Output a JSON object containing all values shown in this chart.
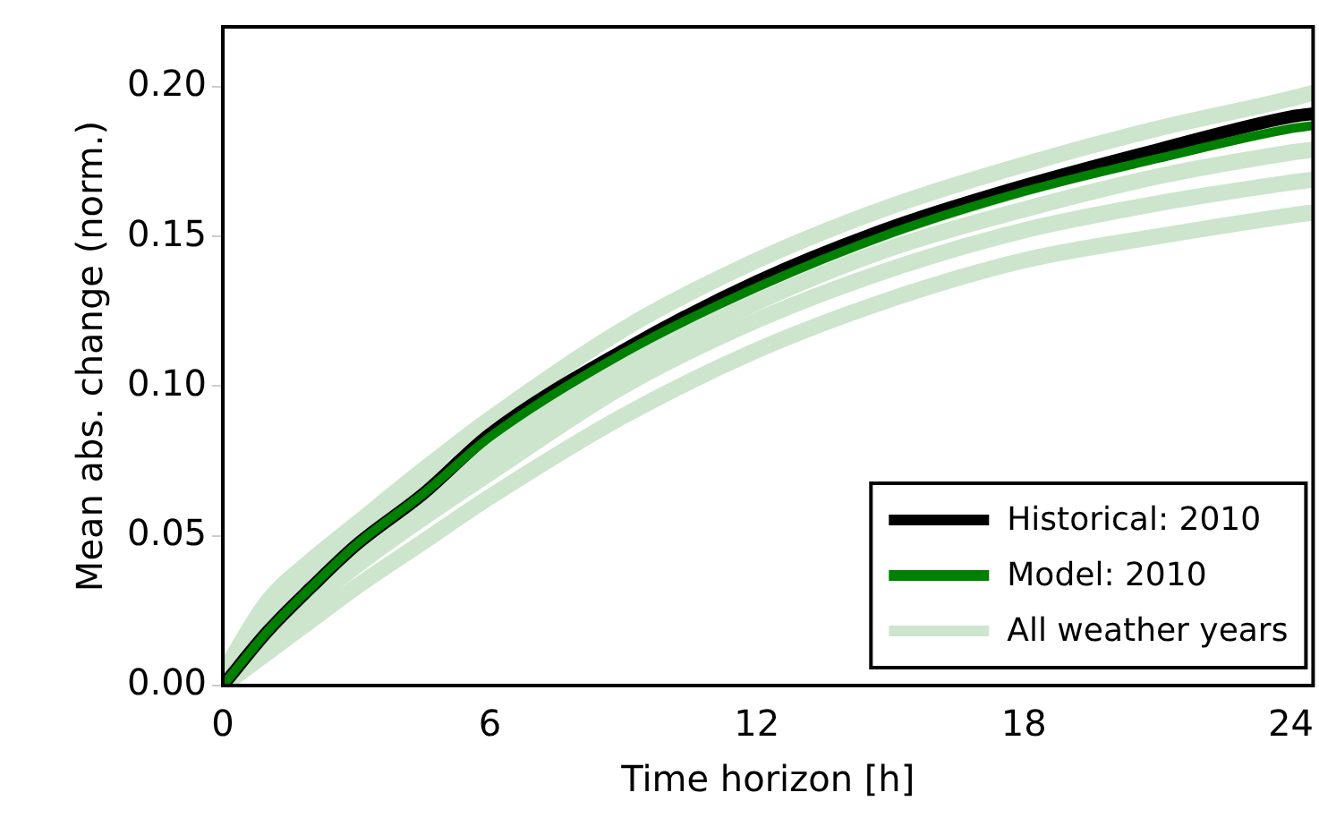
{
  "chart_data": {
    "type": "line",
    "xlabel": "Time horizon [h]",
    "ylabel": "Mean abs. change (norm.)",
    "xlim": [
      0,
      24.5
    ],
    "xticks": [
      0,
      6,
      12,
      18,
      24
    ],
    "ylim": [
      0,
      0.22
    ],
    "yticks": [
      {
        "value": 0,
        "label": "0.00"
      },
      {
        "value": 0.05,
        "label": "0.05"
      },
      {
        "value": 0.1,
        "label": "0.10"
      },
      {
        "value": 0.15,
        "label": "0.15"
      },
      {
        "value": 0.2,
        "label": "0.20"
      }
    ],
    "grid": false,
    "legend": "bottom right",
    "marker": "none",
    "line_style": "solid",
    "x": [
      0,
      1,
      2,
      3,
      4.5,
      6,
      9,
      12,
      15,
      18,
      21,
      24,
      24.5
    ],
    "series": [
      {
        "name": "Historical: 2010",
        "color": "#000000",
        "values": [
          0,
          0.018,
          0.033,
          0.047,
          0.064,
          0.084,
          0.112,
          0.135,
          0.153,
          0.167,
          0.179,
          0.19,
          0.191
        ]
      },
      {
        "name": "Model: 2010",
        "color": "#008000",
        "values": [
          0,
          0.018,
          0.033,
          0.047,
          0.064,
          0.083,
          0.111,
          0.133,
          0.151,
          0.165,
          0.176,
          0.186,
          0.187
        ]
      },
      {
        "name": "All weather years",
        "color": "#cce5cc",
        "values": [
          0.004,
          0.028,
          0.042,
          0.054,
          0.072,
          0.089,
          0.119,
          0.142,
          0.16,
          0.174,
          0.186,
          0.196,
          0.198
        ]
      },
      {
        "color": "#cce5cc",
        "values": [
          0.002,
          0.022,
          0.036,
          0.049,
          0.066,
          0.081,
          0.111,
          0.134,
          0.152,
          0.166,
          0.178,
          0.188,
          0.189
        ]
      },
      {
        "color": "#cce5cc",
        "values": [
          0.001,
          0.019,
          0.032,
          0.044,
          0.061,
          0.076,
          0.105,
          0.128,
          0.146,
          0.159,
          0.17,
          0.178,
          0.179
        ]
      },
      {
        "color": "#cce5cc",
        "values": [
          0,
          0.015,
          0.028,
          0.04,
          0.056,
          0.071,
          0.1,
          0.122,
          0.139,
          0.152,
          0.161,
          0.168,
          0.169
        ]
      },
      {
        "color": "#cce5cc",
        "values": [
          0,
          0.011,
          0.022,
          0.033,
          0.048,
          0.063,
          0.09,
          0.112,
          0.129,
          0.142,
          0.15,
          0.157,
          0.158
        ]
      }
    ]
  }
}
